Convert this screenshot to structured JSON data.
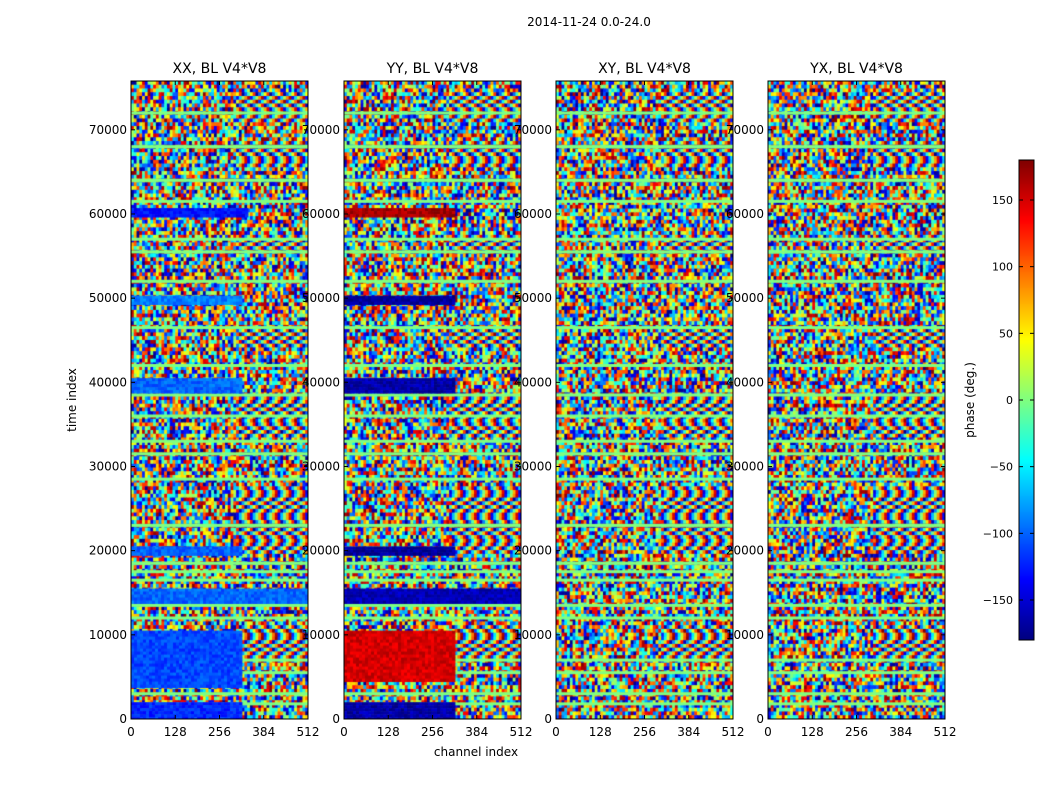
{
  "suptitle": "2014-11-24 0.0-24.0",
  "chart_data": {
    "type": "heatmap",
    "suptitle": "2014-11-24 0.0-24.0",
    "xlabel": "channel index",
    "ylabel": "time index",
    "x_ticks": [
      0,
      128,
      256,
      384,
      512
    ],
    "y_ticks": [
      0,
      10000,
      20000,
      30000,
      40000,
      50000,
      60000,
      70000
    ],
    "xlim": [
      0,
      512
    ],
    "ylim": [
      0,
      75800
    ],
    "panels": [
      {
        "title": "XX, BL V4*V8",
        "polarization": "XX",
        "bands": [
          {
            "y0": 0,
            "y1": 2000,
            "x1": 320,
            "value": -120
          },
          {
            "y0": 4000,
            "y1": 10500,
            "x1": 320,
            "value": -110
          },
          {
            "y0": 14000,
            "y1": 15500,
            "x1": 512,
            "value": -100
          },
          {
            "y0": 19700,
            "y1": 20500,
            "x1": 320,
            "value": -100
          },
          {
            "y0": 39000,
            "y1": 40500,
            "x1": 320,
            "value": -100
          },
          {
            "y0": 49500,
            "y1": 50300,
            "x1": 320,
            "value": -90
          },
          {
            "y0": 59800,
            "y1": 60700,
            "x1": 330,
            "value": -130
          }
        ]
      },
      {
        "title": "YY, BL V4*V8",
        "polarization": "YY",
        "bands": [
          {
            "y0": 0,
            "y1": 2000,
            "x1": 320,
            "value": -165
          },
          {
            "y0": 4500,
            "y1": 10500,
            "x1": 320,
            "value": 150
          },
          {
            "y0": 14000,
            "y1": 15500,
            "x1": 512,
            "value": -160
          },
          {
            "y0": 19700,
            "y1": 20500,
            "x1": 320,
            "value": -170
          },
          {
            "y0": 39000,
            "y1": 40500,
            "x1": 320,
            "value": -165
          },
          {
            "y0": 49500,
            "y1": 50300,
            "x1": 320,
            "value": -170
          },
          {
            "y0": 59800,
            "y1": 60700,
            "x1": 320,
            "value": 165
          }
        ]
      },
      {
        "title": "XY, BL V4*V8",
        "polarization": "XY",
        "bands": []
      },
      {
        "title": "YX, BL V4*V8",
        "polarization": "YX",
        "bands": []
      }
    ],
    "flag_rows": [
      1800,
      3000,
      5500,
      7000,
      12000,
      13500,
      16500,
      17500,
      18500,
      23000,
      28500,
      31500,
      33000,
      36000,
      38500,
      42000,
      46500,
      52000,
      55500,
      57000,
      61500,
      64000,
      68000,
      72000
    ],
    "fringe_rows": [
      {
        "y0": 6500,
        "y1": 11000
      },
      {
        "y0": 19500,
        "y1": 27500
      },
      {
        "y0": 33500,
        "y1": 38500
      },
      {
        "y0": 44000,
        "y1": 46500
      },
      {
        "y0": 55500,
        "y1": 57500
      },
      {
        "y0": 65500,
        "y1": 68500
      },
      {
        "y0": 71000,
        "y1": 74500
      }
    ],
    "colorbar": {
      "label": "phase (deg.)",
      "colormap": "jet",
      "range": [
        -180,
        180
      ],
      "ticks": [
        -150,
        -100,
        -50,
        0,
        50,
        100,
        150
      ]
    }
  }
}
